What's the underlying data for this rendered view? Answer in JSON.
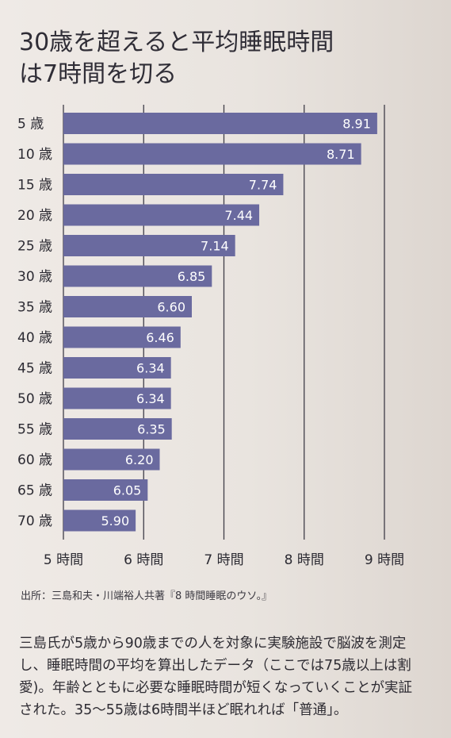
{
  "chart_data": {
    "type": "bar",
    "orientation": "horizontal",
    "title_lines": [
      "30歳を超えると平均睡眠時間",
      "は7時間を切る"
    ],
    "categories": [
      "5 歳",
      "10 歳",
      "15 歳",
      "20 歳",
      "25 歳",
      "30 歳",
      "35 歳",
      "40 歳",
      "45 歳",
      "50 歳",
      "55 歳",
      "60 歳",
      "65 歳",
      "70 歳"
    ],
    "values": [
      8.91,
      8.71,
      7.74,
      7.44,
      7.14,
      6.85,
      6.6,
      6.46,
      6.34,
      6.34,
      6.35,
      6.2,
      6.05,
      5.9
    ],
    "value_labels": [
      "8.91",
      "8.71",
      "7.74",
      "7.44",
      "7.14",
      "6.85",
      "6.60",
      "6.46",
      "6.34",
      "6.34",
      "6.35",
      "6.20",
      "6.05",
      "5.90"
    ],
    "x_ticks": [
      5,
      6,
      7,
      8,
      9
    ],
    "x_tick_labels": [
      "5 時間",
      "6 時間",
      "7 時間",
      "8 時間",
      "9 時間"
    ],
    "xlim": [
      5,
      9
    ],
    "grid": true,
    "bar_color": "#6a6a9f",
    "label_color": "#ffffff"
  },
  "source": "出所：三島和夫・川端裕人共著『8 時間睡眠のウソ。』",
  "description_lines": [
    "三島氏が5歳から90歳までの人を対象に実験施設で脳波を測定",
    "し、睡眠時間の平均を算出したデータ（ここでは75歳以上は割",
    "愛)。年齢とともに必要な睡眠時間が短くなっていくことが実証",
    "された。35〜55歳は6時間半ほど眠れれば「普通」。"
  ]
}
